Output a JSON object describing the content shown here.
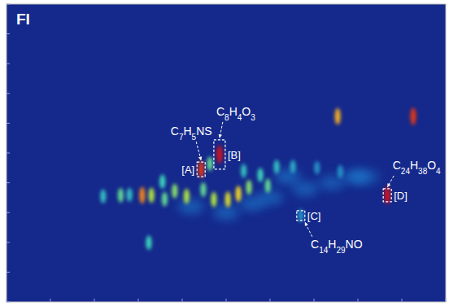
{
  "chart_data": {
    "type": "scatter",
    "title": "FI",
    "xlim": [
      0,
      100
    ],
    "ylim": [
      0,
      100
    ],
    "xticks": [
      0,
      10,
      20,
      30,
      40,
      50,
      60,
      70,
      80,
      90,
      100
    ],
    "yticks": [
      0,
      10,
      20,
      30,
      40,
      50,
      60,
      70,
      80,
      90,
      100
    ],
    "tick_labels": false,
    "grid": false,
    "x": [
      44.3,
      48.5,
      67.0,
      86.7,
      30.9,
      33.0,
      52.8,
      50.4,
      47.2,
      75.4,
      92.6,
      32.4,
      38.3,
      41.0,
      44.8,
      55.2,
      57.8,
      61.5,
      65.2,
      70.7,
      76.0,
      46.3,
      35.5,
      79.6,
      28.0,
      26.0,
      22.0,
      36.0,
      54.0,
      59.5,
      60.0,
      68.0,
      74.0,
      82.0,
      50.0,
      42.0,
      64.0,
      56.0
    ],
    "values": [
      44.5,
      49.5,
      29.0,
      35.8,
      35.8,
      35.8,
      36.3,
      34.4,
      34.4,
      62.3,
      62.3,
      19.9,
      37.2,
      35.5,
      37.7,
      38.5,
      42.6,
      45.4,
      45.4,
      45.0,
      43.7,
      46.4,
      40.4,
      42.0,
      36.0,
      35.8,
      35.5,
      34.5,
      44.0,
      39.0,
      35.0,
      38.0,
      40.0,
      42.0,
      30.0,
      32.0,
      42.0,
      33.0
    ],
    "intensity": [
      0.95,
      1.0,
      0.3,
      1.0,
      0.85,
      0.6,
      0.75,
      0.7,
      0.6,
      0.8,
      0.95,
      0.45,
      0.55,
      0.6,
      0.5,
      0.55,
      0.45,
      0.4,
      0.35,
      0.3,
      0.3,
      0.5,
      0.45,
      0.25,
      0.4,
      0.5,
      0.4,
      0.5,
      0.4,
      0.5,
      0.2,
      0.2,
      0.18,
      0.15,
      0.2,
      0.2,
      0.22,
      0.2
    ],
    "annotations": [
      {
        "label": "[A]",
        "text": "C7H5NS",
        "x": 44.3,
        "y": 44.5
      },
      {
        "label": "[B]",
        "text": "C8H4O3",
        "x": 48.5,
        "y": 49.5
      },
      {
        "label": "[C]",
        "text": "C14H29NO",
        "x": 67.0,
        "y": 29.0
      },
      {
        "label": "[D]",
        "text": "C24H38O4",
        "x": 86.7,
        "y": 35.8
      }
    ]
  }
}
